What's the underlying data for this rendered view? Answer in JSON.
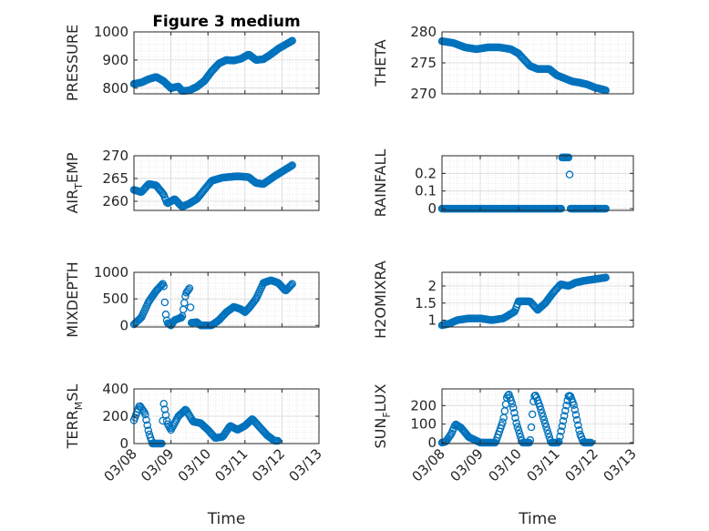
{
  "figure": {
    "title": "Figure 3 medium"
  },
  "colors": {
    "marker": "#0072BD",
    "axis": "#262626",
    "grid": "#d9d9d9"
  },
  "x_ticks": [
    "03/08",
    "03/09",
    "03/10",
    "03/11",
    "03/12",
    "03/13"
  ],
  "chart_data": [
    {
      "type": "scatter",
      "name": "pressure",
      "ylabel": "PRESSURE",
      "xlabel": "",
      "ylim": [
        780,
        1000
      ],
      "yticks": [
        800,
        900,
        1000
      ],
      "xticklabels": false,
      "title": "Figure 3 medium",
      "grid": true,
      "keyframes": [
        [
          0.0,
          815
        ],
        [
          0.2,
          820
        ],
        [
          0.4,
          832
        ],
        [
          0.6,
          840
        ],
        [
          0.8,
          825
        ],
        [
          1.0,
          800
        ],
        [
          1.2,
          806
        ],
        [
          1.3,
          790
        ],
        [
          1.5,
          792
        ],
        [
          1.7,
          805
        ],
        [
          1.9,
          825
        ],
        [
          2.1,
          860
        ],
        [
          2.3,
          888
        ],
        [
          2.5,
          900
        ],
        [
          2.7,
          898
        ],
        [
          2.9,
          905
        ],
        [
          3.1,
          920
        ],
        [
          3.3,
          900
        ],
        [
          3.5,
          903
        ],
        [
          3.7,
          920
        ],
        [
          3.9,
          940
        ],
        [
          4.1,
          955
        ],
        [
          4.3,
          970
        ]
      ]
    },
    {
      "type": "scatter",
      "name": "theta",
      "ylabel": "THETA",
      "xlabel": "",
      "ylim": [
        270,
        280
      ],
      "yticks": [
        270,
        275,
        280
      ],
      "xticklabels": false,
      "title": "",
      "grid": true,
      "keyframes": [
        [
          0.0,
          278.5
        ],
        [
          0.3,
          278.2
        ],
        [
          0.6,
          277.5
        ],
        [
          0.9,
          277.2
        ],
        [
          1.2,
          277.5
        ],
        [
          1.5,
          277.5
        ],
        [
          1.8,
          277.2
        ],
        [
          2.0,
          276.5
        ],
        [
          2.3,
          274.5
        ],
        [
          2.5,
          274.0
        ],
        [
          2.8,
          274.0
        ],
        [
          3.0,
          273.0
        ],
        [
          3.2,
          272.5
        ],
        [
          3.4,
          272.0
        ],
        [
          3.6,
          271.8
        ],
        [
          3.8,
          271.5
        ],
        [
          4.0,
          271.0
        ],
        [
          4.2,
          270.7
        ],
        [
          4.3,
          270.5
        ]
      ]
    },
    {
      "type": "scatter",
      "name": "air_temp",
      "ylabel": "AIR",
      "ylabel_sub": "T",
      "ylabel_tail": "EMP",
      "xlabel": "",
      "ylim": [
        258,
        270
      ],
      "yticks": [
        260,
        265,
        270
      ],
      "xticklabels": false,
      "title": "",
      "grid": true,
      "keyframes": [
        [
          0.0,
          262.5
        ],
        [
          0.2,
          262.0
        ],
        [
          0.4,
          263.8
        ],
        [
          0.6,
          263.5
        ],
        [
          0.8,
          261.5
        ],
        [
          0.9,
          259.5
        ],
        [
          1.1,
          260.5
        ],
        [
          1.3,
          258.8
        ],
        [
          1.5,
          259.5
        ],
        [
          1.7,
          260.5
        ],
        [
          1.9,
          262.5
        ],
        [
          2.1,
          264.5
        ],
        [
          2.4,
          265.2
        ],
        [
          2.8,
          265.5
        ],
        [
          3.1,
          265.3
        ],
        [
          3.3,
          264.0
        ],
        [
          3.5,
          263.8
        ],
        [
          3.8,
          265.5
        ],
        [
          4.0,
          266.5
        ],
        [
          4.2,
          267.5
        ],
        [
          4.3,
          268.0
        ]
      ]
    },
    {
      "type": "scatter",
      "name": "rainfall",
      "ylabel": "RAINFALL",
      "xlabel": "",
      "ylim": [
        -0.01,
        0.3
      ],
      "yticks": [
        0,
        0.1,
        0.2
      ],
      "xticklabels": false,
      "title": "",
      "grid": true,
      "keyframes": [
        [
          0.0,
          0
        ],
        [
          3.12,
          0
        ],
        [
          3.13,
          0.29
        ],
        [
          3.33,
          0.29
        ],
        [
          3.34,
          0
        ],
        [
          4.3,
          0
        ]
      ]
    },
    {
      "type": "scatter",
      "name": "mixdepth",
      "ylabel": "MIXDEPTH",
      "xlabel": "",
      "ylim": [
        -30,
        1000
      ],
      "yticks": [
        0,
        500,
        1000
      ],
      "xticklabels": false,
      "title": "",
      "grid": true,
      "keyframes": [
        [
          0.0,
          20
        ],
        [
          0.2,
          150
        ],
        [
          0.4,
          450
        ],
        [
          0.6,
          650
        ],
        [
          0.8,
          800
        ],
        [
          0.85,
          250
        ],
        [
          0.9,
          50
        ],
        [
          1.0,
          0
        ],
        [
          1.1,
          100
        ],
        [
          1.3,
          150
        ],
        [
          1.4,
          600
        ],
        [
          1.5,
          700
        ],
        [
          1.55,
          50
        ],
        [
          1.7,
          60
        ],
        [
          1.8,
          0
        ],
        [
          2.1,
          0
        ],
        [
          2.3,
          100
        ],
        [
          2.5,
          250
        ],
        [
          2.7,
          350
        ],
        [
          2.9,
          300
        ],
        [
          3.0,
          250
        ],
        [
          3.1,
          320
        ],
        [
          3.3,
          500
        ],
        [
          3.5,
          800
        ],
        [
          3.7,
          850
        ],
        [
          3.9,
          800
        ],
        [
          4.1,
          650
        ],
        [
          4.3,
          800
        ]
      ]
    },
    {
      "type": "scatter",
      "name": "h2o_mixing_ratio",
      "ylabel": "H2OMIXRA",
      "xlabel": "",
      "ylim": [
        0.8,
        2.4
      ],
      "yticks": [
        1,
        1.5,
        2
      ],
      "xticklabels": false,
      "title": "",
      "grid": true,
      "keyframes": [
        [
          0.0,
          0.85
        ],
        [
          0.2,
          0.9
        ],
        [
          0.4,
          1.0
        ],
        [
          0.7,
          1.05
        ],
        [
          1.0,
          1.05
        ],
        [
          1.3,
          1.0
        ],
        [
          1.6,
          1.05
        ],
        [
          1.9,
          1.25
        ],
        [
          2.0,
          1.55
        ],
        [
          2.3,
          1.55
        ],
        [
          2.5,
          1.3
        ],
        [
          2.7,
          1.5
        ],
        [
          2.9,
          1.8
        ],
        [
          3.1,
          2.05
        ],
        [
          3.3,
          2.0
        ],
        [
          3.5,
          2.1
        ],
        [
          3.7,
          2.15
        ],
        [
          4.0,
          2.2
        ],
        [
          4.3,
          2.25
        ]
      ]
    },
    {
      "type": "scatter",
      "name": "terrain_msl",
      "ylabel": "TERR",
      "ylabel_sub": "M",
      "ylabel_tail": "SL",
      "xlabel": "Time",
      "ylim": [
        0,
        400
      ],
      "yticks": [
        0,
        200,
        400
      ],
      "xticklabels": true,
      "title": "",
      "grid": true,
      "keyframes": [
        [
          0.0,
          170
        ],
        [
          0.15,
          280
        ],
        [
          0.3,
          220
        ],
        [
          0.4,
          80
        ],
        [
          0.5,
          0
        ],
        [
          0.75,
          0
        ],
        [
          0.8,
          300
        ],
        [
          0.9,
          150
        ],
        [
          1.0,
          100
        ],
        [
          1.2,
          200
        ],
        [
          1.4,
          250
        ],
        [
          1.6,
          160
        ],
        [
          1.8,
          150
        ],
        [
          2.0,
          100
        ],
        [
          2.2,
          40
        ],
        [
          2.4,
          50
        ],
        [
          2.6,
          130
        ],
        [
          2.8,
          100
        ],
        [
          3.0,
          130
        ],
        [
          3.2,
          180
        ],
        [
          3.4,
          120
        ],
        [
          3.6,
          60
        ],
        [
          3.8,
          20
        ],
        [
          3.9,
          20
        ]
      ]
    },
    {
      "type": "scatter",
      "name": "sun_flux",
      "ylabel": "SUN",
      "ylabel_sub": "F",
      "ylabel_tail": "LUX",
      "xlabel": "Time",
      "ylim": [
        -5,
        290
      ],
      "yticks": [
        0,
        100,
        200
      ],
      "xticklabels": true,
      "title": "",
      "grid": true,
      "keyframes": [
        [
          0.0,
          0
        ],
        [
          0.1,
          5
        ],
        [
          0.25,
          50
        ],
        [
          0.35,
          100
        ],
        [
          0.5,
          80
        ],
        [
          0.7,
          30
        ],
        [
          0.9,
          10
        ],
        [
          1.0,
          0
        ],
        [
          1.2,
          0
        ],
        [
          1.4,
          0
        ],
        [
          1.6,
          120
        ],
        [
          1.7,
          250
        ],
        [
          1.75,
          260
        ],
        [
          1.85,
          200
        ],
        [
          1.95,
          100
        ],
        [
          2.1,
          0
        ],
        [
          2.3,
          0
        ],
        [
          2.4,
          250
        ],
        [
          2.45,
          255
        ],
        [
          2.55,
          200
        ],
        [
          2.7,
          100
        ],
        [
          2.85,
          0
        ],
        [
          3.05,
          0
        ],
        [
          3.2,
          150
        ],
        [
          3.3,
          250
        ],
        [
          3.35,
          255
        ],
        [
          3.45,
          200
        ],
        [
          3.6,
          50
        ],
        [
          3.7,
          0
        ],
        [
          3.9,
          0
        ]
      ]
    }
  ]
}
